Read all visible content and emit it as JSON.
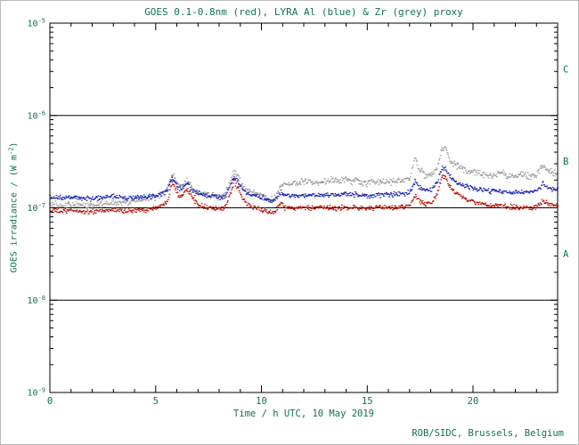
{
  "header": {
    "title": "GOES 0.1-0.8nm (red), LYRA Al (blue) & Zr (grey) proxy"
  },
  "footer": {
    "credit": "ROB/SIDC, Brussels, Belgium"
  },
  "colors": {
    "text": "#0e724c",
    "axis": "#000000",
    "red_series": "#bb1407",
    "blue_series": "#1c24b5",
    "grey_series": "#9a9a9a"
  },
  "chart_data": {
    "type": "scatter",
    "title": "GOES 0.1-0.8nm (red), LYRA Al (blue) & Zr (grey) proxy",
    "xlabel": "Time / h UTC, 10 May 2019",
    "ylabel_prefix": "GOES irradiance / (W m",
    "ylabel_exponent": "-2",
    "ylabel_suffix": ")",
    "xlim": [
      0,
      24
    ],
    "x_major_ticks": [
      0,
      5,
      10,
      15,
      20
    ],
    "x_minor_step": 1,
    "ylog10_range": [
      -9,
      -5
    ],
    "y_decade_exponents": [
      -5,
      -6,
      -7,
      -8,
      -9
    ],
    "hlines_log10": [
      -6,
      -7,
      -8
    ],
    "flare_classes": [
      {
        "label": "C",
        "log10_mid": -5.5
      },
      {
        "label": "B",
        "log10_mid": -6.5
      },
      {
        "label": "A",
        "log10_mid": -7.5
      }
    ],
    "grid": false,
    "legend": "in title",
    "value_unit": "1e-7 W m^-2",
    "series": [
      {
        "name": "GOES 0.1-0.8nm",
        "color": "#bb1407",
        "noise_sigma": 0.013,
        "points": [
          [
            0,
            0.92
          ],
          [
            0.3,
            0.93
          ],
          [
            0.6,
            0.91
          ],
          [
            1,
            0.94
          ],
          [
            1.4,
            0.92
          ],
          [
            1.8,
            0.9
          ],
          [
            2.2,
            0.92
          ],
          [
            2.6,
            0.93
          ],
          [
            3,
            0.95
          ],
          [
            3.4,
            0.93
          ],
          [
            3.8,
            0.92
          ],
          [
            4.2,
            0.94
          ],
          [
            4.6,
            0.96
          ],
          [
            5,
            1.0
          ],
          [
            5.3,
            1.05
          ],
          [
            5.55,
            1.2
          ],
          [
            5.75,
            1.9
          ],
          [
            5.85,
            1.8
          ],
          [
            6,
            1.45
          ],
          [
            6.2,
            1.3
          ],
          [
            6.35,
            1.55
          ],
          [
            6.5,
            1.6
          ],
          [
            6.7,
            1.3
          ],
          [
            6.9,
            1.15
          ],
          [
            7.2,
            1.05
          ],
          [
            7.6,
            1.0
          ],
          [
            8,
            0.97
          ],
          [
            8.3,
            1.0
          ],
          [
            8.55,
            1.5
          ],
          [
            8.7,
            1.95
          ],
          [
            8.85,
            1.65
          ],
          [
            9.1,
            1.25
          ],
          [
            9.4,
            1.05
          ],
          [
            9.7,
            1.0
          ],
          [
            10,
            0.96
          ],
          [
            10.3,
            0.9
          ],
          [
            10.55,
            0.87
          ],
          [
            10.8,
            1.05
          ],
          [
            10.95,
            1.2
          ],
          [
            11.1,
            1.0
          ],
          [
            11.5,
            0.99
          ],
          [
            12,
            1.0
          ],
          [
            12.5,
            0.99
          ],
          [
            13,
            1.0
          ],
          [
            13.5,
            0.99
          ],
          [
            14,
            1.01
          ],
          [
            14.5,
            1.0
          ],
          [
            15,
            0.99
          ],
          [
            15.5,
            1.0
          ],
          [
            16,
            1.0
          ],
          [
            16.5,
            1.02
          ],
          [
            17,
            1.04
          ],
          [
            17.25,
            1.35
          ],
          [
            17.45,
            1.2
          ],
          [
            17.7,
            1.1
          ],
          [
            18,
            1.12
          ],
          [
            18.3,
            1.4
          ],
          [
            18.55,
            2.2
          ],
          [
            18.7,
            2.1
          ],
          [
            18.9,
            1.7
          ],
          [
            19.2,
            1.45
          ],
          [
            19.5,
            1.3
          ],
          [
            19.8,
            1.2
          ],
          [
            20.2,
            1.12
          ],
          [
            20.6,
            1.08
          ],
          [
            21,
            1.06
          ],
          [
            21.5,
            1.03
          ],
          [
            22,
            1.01
          ],
          [
            22.5,
            1.0
          ],
          [
            23,
            1.03
          ],
          [
            23.3,
            1.2
          ],
          [
            23.6,
            1.08
          ],
          [
            24,
            1.05
          ]
        ]
      },
      {
        "name": "LYRA Al proxy",
        "color": "#1c24b5",
        "noise_sigma": 0.013,
        "points": [
          [
            0,
            1.28
          ],
          [
            0.3,
            1.3
          ],
          [
            0.6,
            1.27
          ],
          [
            1,
            1.3
          ],
          [
            1.4,
            1.28
          ],
          [
            1.8,
            1.26
          ],
          [
            2.2,
            1.27
          ],
          [
            2.6,
            1.29
          ],
          [
            3,
            1.31
          ],
          [
            3.4,
            1.29
          ],
          [
            3.8,
            1.28
          ],
          [
            4.2,
            1.3
          ],
          [
            4.6,
            1.32
          ],
          [
            5,
            1.36
          ],
          [
            5.3,
            1.42
          ],
          [
            5.55,
            1.55
          ],
          [
            5.75,
            2.1
          ],
          [
            5.85,
            2.0
          ],
          [
            6,
            1.7
          ],
          [
            6.2,
            1.55
          ],
          [
            6.35,
            1.75
          ],
          [
            6.5,
            1.8
          ],
          [
            6.7,
            1.55
          ],
          [
            6.9,
            1.45
          ],
          [
            7.2,
            1.38
          ],
          [
            7.6,
            1.33
          ],
          [
            8,
            1.3
          ],
          [
            8.3,
            1.35
          ],
          [
            8.55,
            1.8
          ],
          [
            8.7,
            2.2
          ],
          [
            8.85,
            1.95
          ],
          [
            9.1,
            1.55
          ],
          [
            9.4,
            1.4
          ],
          [
            9.7,
            1.35
          ],
          [
            10,
            1.3
          ],
          [
            10.3,
            1.22
          ],
          [
            10.55,
            1.18
          ],
          [
            10.8,
            1.35
          ],
          [
            10.95,
            1.5
          ],
          [
            11.1,
            1.35
          ],
          [
            11.5,
            1.36
          ],
          [
            12,
            1.38
          ],
          [
            12.5,
            1.36
          ],
          [
            13,
            1.38
          ],
          [
            13.5,
            1.37
          ],
          [
            14,
            1.4
          ],
          [
            14.5,
            1.38
          ],
          [
            15,
            1.36
          ],
          [
            15.5,
            1.38
          ],
          [
            16,
            1.39
          ],
          [
            16.5,
            1.41
          ],
          [
            17,
            1.45
          ],
          [
            17.25,
            1.95
          ],
          [
            17.45,
            1.65
          ],
          [
            17.7,
            1.55
          ],
          [
            18,
            1.56
          ],
          [
            18.3,
            1.9
          ],
          [
            18.55,
            2.75
          ],
          [
            18.7,
            2.6
          ],
          [
            18.9,
            2.15
          ],
          [
            19.2,
            1.9
          ],
          [
            19.5,
            1.75
          ],
          [
            19.8,
            1.65
          ],
          [
            20.2,
            1.58
          ],
          [
            20.6,
            1.54
          ],
          [
            21,
            1.52
          ],
          [
            21.5,
            1.48
          ],
          [
            22,
            1.45
          ],
          [
            22.5,
            1.47
          ],
          [
            23,
            1.52
          ],
          [
            23.3,
            1.85
          ],
          [
            23.6,
            1.6
          ],
          [
            24,
            1.58
          ]
        ]
      },
      {
        "name": "LYRA Zr proxy",
        "color": "#9a9a9a",
        "noise_sigma": 0.017,
        "points": [
          [
            0,
            1.06
          ],
          [
            0.3,
            1.07
          ],
          [
            0.6,
            1.05
          ],
          [
            1,
            1.08
          ],
          [
            1.4,
            1.07
          ],
          [
            1.8,
            1.05
          ],
          [
            2.2,
            1.07
          ],
          [
            2.6,
            1.1
          ],
          [
            3,
            1.13
          ],
          [
            3.4,
            1.15
          ],
          [
            3.8,
            1.18
          ],
          [
            4.2,
            1.22
          ],
          [
            4.6,
            1.27
          ],
          [
            5,
            1.33
          ],
          [
            5.3,
            1.4
          ],
          [
            5.55,
            1.6
          ],
          [
            5.75,
            2.35
          ],
          [
            5.85,
            2.2
          ],
          [
            6,
            1.85
          ],
          [
            6.2,
            1.65
          ],
          [
            6.35,
            1.9
          ],
          [
            6.5,
            1.98
          ],
          [
            6.7,
            1.65
          ],
          [
            6.9,
            1.5
          ],
          [
            7.2,
            1.42
          ],
          [
            7.6,
            1.36
          ],
          [
            8,
            1.33
          ],
          [
            8.3,
            1.42
          ],
          [
            8.55,
            2.0
          ],
          [
            8.7,
            2.55
          ],
          [
            8.85,
            2.25
          ],
          [
            9.1,
            1.7
          ],
          [
            9.4,
            1.5
          ],
          [
            9.7,
            1.42
          ],
          [
            10,
            1.38
          ],
          [
            10.3,
            1.28
          ],
          [
            10.55,
            1.22
          ],
          [
            10.8,
            1.55
          ],
          [
            10.95,
            1.75
          ],
          [
            11.1,
            1.8
          ],
          [
            11.5,
            1.85
          ],
          [
            12,
            1.9
          ],
          [
            12.2,
            2.0
          ],
          [
            12.5,
            1.88
          ],
          [
            13,
            1.92
          ],
          [
            13.3,
            2.05
          ],
          [
            13.6,
            1.9
          ],
          [
            14,
            2.05
          ],
          [
            14.3,
            1.95
          ],
          [
            14.7,
            1.9
          ],
          [
            15,
            1.85
          ],
          [
            15.5,
            1.92
          ],
          [
            16,
            1.9
          ],
          [
            16.5,
            1.98
          ],
          [
            17,
            2.05
          ],
          [
            17.25,
            3.6
          ],
          [
            17.45,
            2.6
          ],
          [
            17.7,
            2.3
          ],
          [
            18,
            2.3
          ],
          [
            18.3,
            2.7
          ],
          [
            18.55,
            4.5
          ],
          [
            18.7,
            4.2
          ],
          [
            18.9,
            3.3
          ],
          [
            19.2,
            2.9
          ],
          [
            19.5,
            2.65
          ],
          [
            19.8,
            2.5
          ],
          [
            20.2,
            2.35
          ],
          [
            20.6,
            2.25
          ],
          [
            21,
            2.2
          ],
          [
            21.3,
            2.45
          ],
          [
            21.6,
            2.2
          ],
          [
            22,
            2.15
          ],
          [
            22.4,
            2.35
          ],
          [
            22.7,
            2.2
          ],
          [
            23,
            2.25
          ],
          [
            23.3,
            2.9
          ],
          [
            23.6,
            2.4
          ],
          [
            24,
            2.35
          ]
        ]
      }
    ]
  }
}
